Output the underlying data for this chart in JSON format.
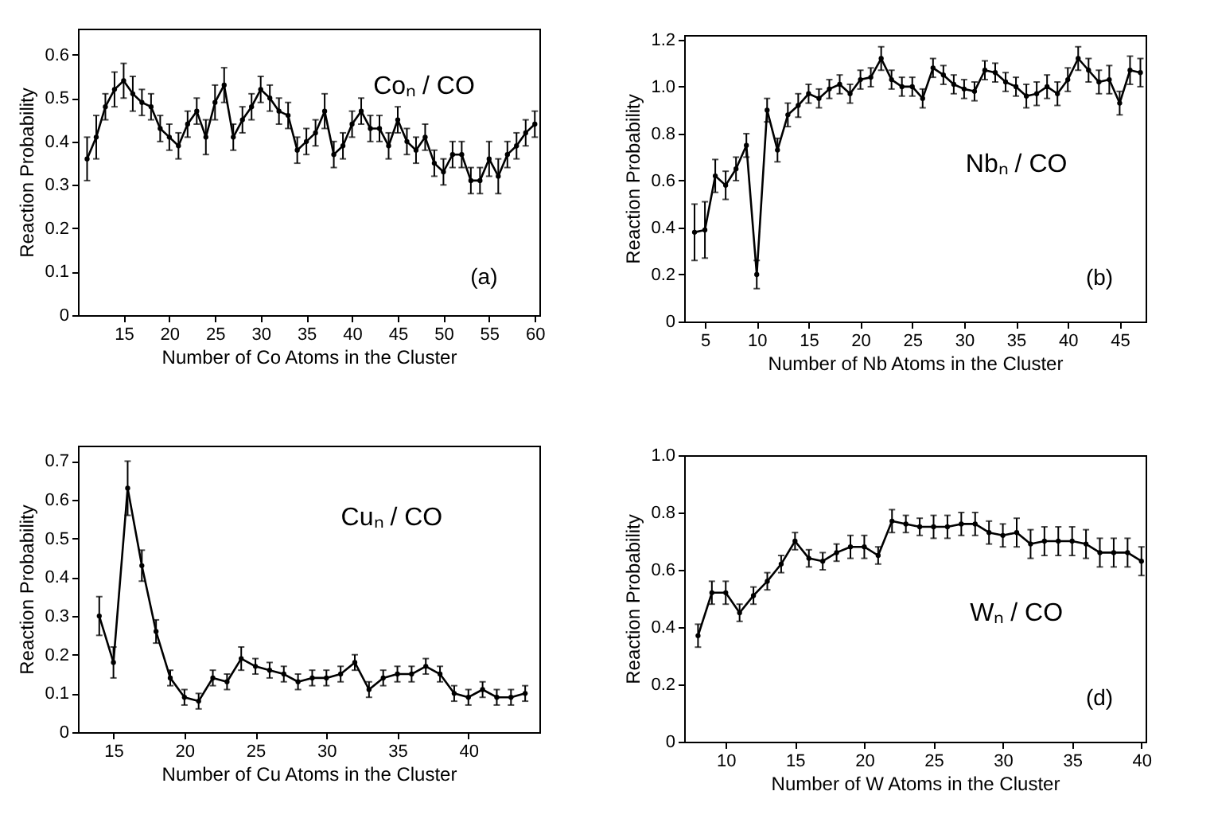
{
  "chart_data": [
    {
      "type": "line",
      "xlabel": "Number of Co Atoms in the Cluster",
      "ylabel": "Reaction Probability",
      "annotations": [
        "Coₙ / CO",
        "(a)"
      ],
      "marker": "circle",
      "xlim": [
        10,
        60.5
      ],
      "ylim": [
        0,
        0.66
      ],
      "xticks": [
        15,
        20,
        25,
        30,
        35,
        40,
        45,
        50,
        55,
        60
      ],
      "yticks": [
        0,
        0.1,
        0.2,
        0.3,
        0.4,
        0.5,
        0.6
      ],
      "x": [
        11,
        12,
        13,
        14,
        15,
        16,
        17,
        18,
        19,
        20,
        21,
        22,
        23,
        24,
        25,
        26,
        27,
        28,
        29,
        30,
        31,
        32,
        33,
        34,
        35,
        36,
        37,
        38,
        39,
        40,
        41,
        42,
        43,
        44,
        45,
        46,
        47,
        48,
        49,
        50,
        51,
        52,
        53,
        54,
        55,
        56,
        57,
        58,
        59,
        60
      ],
      "series": [
        {
          "color": "#000000",
          "values": [
            0.36,
            0.41,
            0.48,
            0.52,
            0.54,
            0.51,
            0.49,
            0.48,
            0.43,
            0.41,
            0.39,
            0.44,
            0.47,
            0.41,
            0.49,
            0.53,
            0.41,
            0.45,
            0.48,
            0.52,
            0.5,
            0.47,
            0.46,
            0.38,
            0.4,
            0.42,
            0.47,
            0.37,
            0.39,
            0.44,
            0.47,
            0.43,
            0.43,
            0.39,
            0.45,
            0.4,
            0.38,
            0.41,
            0.35,
            0.33,
            0.37,
            0.37,
            0.31,
            0.31,
            0.36,
            0.32,
            0.37,
            0.39,
            0.42,
            0.44
          ],
          "errors": [
            0.05,
            0.05,
            0.03,
            0.04,
            0.04,
            0.04,
            0.03,
            0.03,
            0.03,
            0.03,
            0.03,
            0.03,
            0.03,
            0.04,
            0.04,
            0.04,
            0.03,
            0.03,
            0.03,
            0.03,
            0.03,
            0.03,
            0.03,
            0.03,
            0.03,
            0.03,
            0.04,
            0.03,
            0.03,
            0.03,
            0.03,
            0.03,
            0.03,
            0.03,
            0.03,
            0.03,
            0.03,
            0.03,
            0.03,
            0.03,
            0.03,
            0.03,
            0.03,
            0.03,
            0.04,
            0.04,
            0.03,
            0.03,
            0.03,
            0.03
          ]
        }
      ]
    },
    {
      "type": "line",
      "xlabel": "Number of Nb Atoms in the Cluster",
      "ylabel": "Reaction Probability",
      "annotations": [
        "Nbₙ / CO",
        "(b)"
      ],
      "marker": "circle",
      "xlim": [
        3,
        47.5
      ],
      "ylim": [
        0,
        1.22
      ],
      "xticks": [
        5,
        10,
        15,
        20,
        25,
        30,
        35,
        40,
        45
      ],
      "yticks": [
        0,
        0.2,
        0.4,
        0.6,
        0.8,
        {
          "value": 1,
          "label": "1.0"
        },
        1.2
      ],
      "x": [
        4,
        5,
        6,
        7,
        8,
        9,
        10,
        11,
        12,
        13,
        14,
        15,
        16,
        17,
        18,
        19,
        20,
        21,
        22,
        23,
        24,
        25,
        26,
        27,
        28,
        29,
        30,
        31,
        32,
        33,
        34,
        35,
        36,
        37,
        38,
        39,
        40,
        41,
        42,
        43,
        44,
        45,
        46,
        47
      ],
      "series": [
        {
          "color": "#000000",
          "values": [
            0.38,
            0.39,
            0.62,
            0.58,
            0.65,
            0.75,
            0.2,
            0.9,
            0.73,
            0.88,
            0.92,
            0.97,
            0.95,
            0.99,
            1.01,
            0.97,
            1.03,
            1.04,
            1.12,
            1.03,
            1.0,
            1.0,
            0.95,
            1.08,
            1.05,
            1.01,
            0.99,
            0.98,
            1.07,
            1.06,
            1.02,
            1.0,
            0.96,
            0.97,
            1.0,
            0.97,
            1.03,
            1.12,
            1.07,
            1.02,
            1.03,
            0.93,
            1.07,
            1.06
          ],
          "errors": [
            0.12,
            0.12,
            0.07,
            0.06,
            0.05,
            0.05,
            0.06,
            0.05,
            0.05,
            0.05,
            0.05,
            0.04,
            0.04,
            0.04,
            0.04,
            0.04,
            0.04,
            0.04,
            0.05,
            0.04,
            0.04,
            0.04,
            0.04,
            0.04,
            0.04,
            0.04,
            0.04,
            0.04,
            0.04,
            0.04,
            0.04,
            0.04,
            0.05,
            0.05,
            0.05,
            0.05,
            0.05,
            0.05,
            0.05,
            0.05,
            0.06,
            0.05,
            0.06,
            0.06
          ]
        }
      ]
    },
    {
      "type": "line",
      "xlabel": "Number of Cu Atoms in the Cluster",
      "ylabel": "Reaction Probability",
      "annotations": [
        "Cuₙ / CO"
      ],
      "marker": "circle",
      "xlim": [
        12.5,
        45
      ],
      "ylim": [
        0,
        0.74
      ],
      "xticks": [
        15,
        20,
        25,
        30,
        35,
        40
      ],
      "yticks": [
        0,
        0.1,
        0.2,
        0.3,
        0.4,
        0.5,
        0.6,
        0.7
      ],
      "x": [
        14,
        15,
        16,
        17,
        18,
        19,
        20,
        21,
        22,
        23,
        24,
        25,
        26,
        27,
        28,
        29,
        30,
        31,
        32,
        33,
        34,
        35,
        36,
        37,
        38,
        39,
        40,
        41,
        42,
        43,
        44
      ],
      "series": [
        {
          "color": "#000000",
          "values": [
            0.3,
            0.18,
            0.63,
            0.43,
            0.26,
            0.14,
            0.09,
            0.08,
            0.14,
            0.13,
            0.19,
            0.17,
            0.16,
            0.15,
            0.13,
            0.14,
            0.14,
            0.15,
            0.18,
            0.11,
            0.14,
            0.15,
            0.15,
            0.17,
            0.15,
            0.1,
            0.09,
            0.11,
            0.09,
            0.09,
            0.1
          ],
          "errors": [
            0.05,
            0.04,
            0.07,
            0.04,
            0.03,
            0.02,
            0.02,
            0.02,
            0.02,
            0.02,
            0.03,
            0.02,
            0.02,
            0.02,
            0.02,
            0.02,
            0.02,
            0.02,
            0.02,
            0.02,
            0.02,
            0.02,
            0.02,
            0.02,
            0.02,
            0.02,
            0.02,
            0.02,
            0.02,
            0.02,
            0.02
          ]
        }
      ]
    },
    {
      "type": "line",
      "xlabel": "Number of W Atoms in the Cluster",
      "ylabel": "Reaction Probability",
      "annotations": [
        "Wₙ / CO",
        "(d)"
      ],
      "marker": "circle",
      "xlim": [
        7,
        40.3
      ],
      "ylim": [
        0,
        1
      ],
      "xticks": [
        10,
        15,
        20,
        25,
        30,
        35,
        40
      ],
      "yticks": [
        0,
        0.2,
        0.4,
        0.6,
        0.8,
        {
          "value": 1,
          "label": "1.0"
        }
      ],
      "x": [
        8,
        9,
        10,
        11,
        12,
        13,
        14,
        15,
        16,
        17,
        18,
        19,
        20,
        21,
        22,
        23,
        24,
        25,
        26,
        27,
        28,
        29,
        30,
        31,
        32,
        33,
        34,
        35,
        36,
        37,
        38,
        39,
        40
      ],
      "series": [
        {
          "color": "#000000",
          "values": [
            0.37,
            0.52,
            0.52,
            0.45,
            0.51,
            0.56,
            0.62,
            0.7,
            0.64,
            0.63,
            0.66,
            0.68,
            0.68,
            0.65,
            0.77,
            0.76,
            0.75,
            0.75,
            0.75,
            0.76,
            0.76,
            0.73,
            0.72,
            0.73,
            0.69,
            0.7,
            0.7,
            0.7,
            0.69,
            0.66,
            0.66,
            0.66,
            0.63
          ],
          "errors": [
            0.04,
            0.04,
            0.04,
            0.03,
            0.03,
            0.03,
            0.03,
            0.03,
            0.03,
            0.03,
            0.03,
            0.04,
            0.04,
            0.03,
            0.04,
            0.03,
            0.03,
            0.04,
            0.04,
            0.04,
            0.04,
            0.04,
            0.04,
            0.05,
            0.05,
            0.05,
            0.05,
            0.05,
            0.05,
            0.05,
            0.05,
            0.05,
            0.05
          ]
        }
      ]
    }
  ]
}
